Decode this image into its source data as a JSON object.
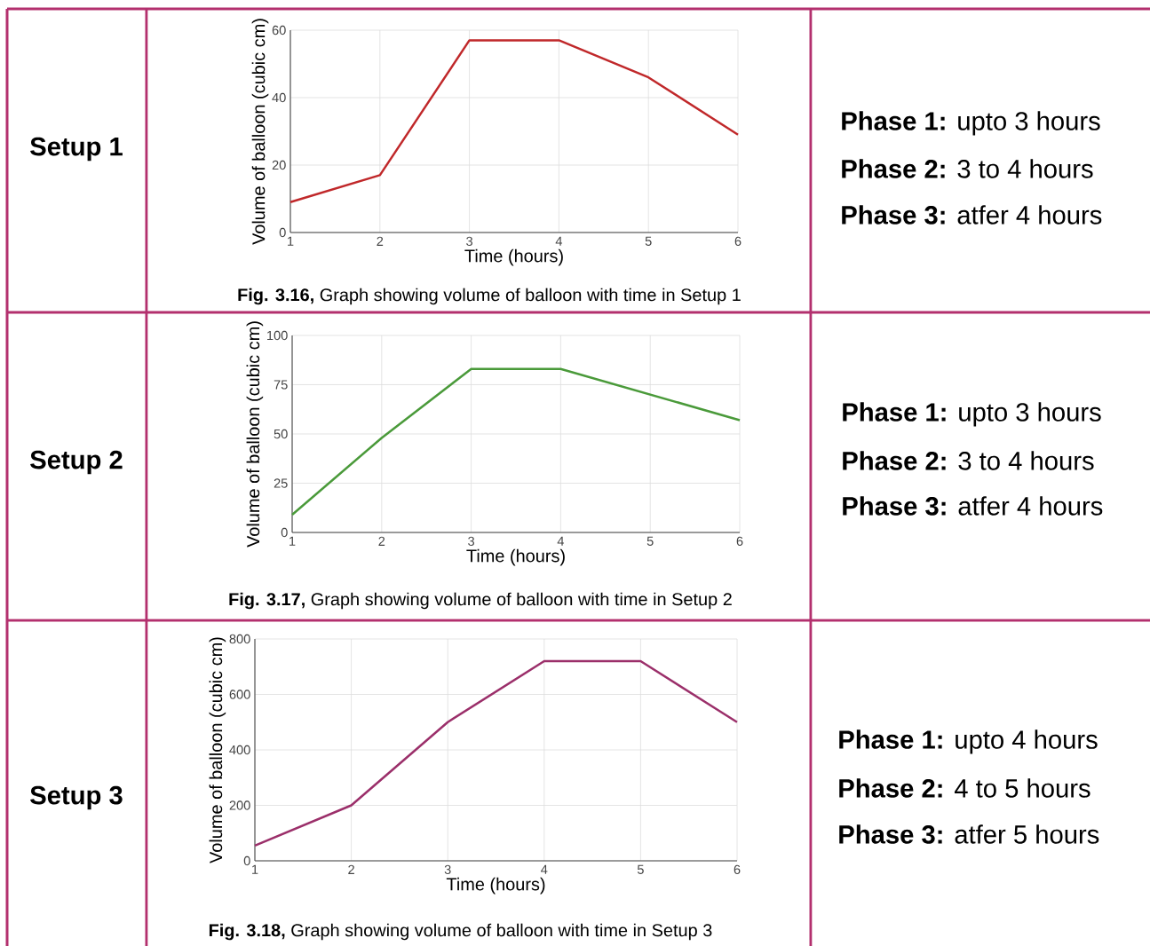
{
  "chart_data": [
    {
      "type": "line",
      "x": [
        1,
        2,
        3,
        4,
        5,
        6
      ],
      "values": [
        9,
        17,
        57,
        57,
        46,
        29
      ],
      "color": "#c0282a",
      "xlabel": "Time (hours)",
      "ylabel": "Volume of balloon (cubic cm)",
      "xlim": [
        1,
        6
      ],
      "xticks": [
        1,
        2,
        3,
        4,
        5,
        6
      ],
      "ylim": [
        0,
        60
      ],
      "yticks": [
        0,
        20,
        40,
        60
      ],
      "grid": true,
      "annotations": [
        "Setup 1",
        "**Phase 1:** upto 3 hours",
        "**Phase 2:** 3 to 4 hours",
        "**Phase 3:** atfer 4 hours",
        "**Fig. 3.16,** Graph showing volume of balloon with time in Setup 1"
      ]
    },
    {
      "type": "line",
      "x": [
        1,
        2,
        3,
        4,
        5,
        6
      ],
      "values": [
        9,
        48,
        83,
        83,
        70,
        57
      ],
      "color": "#4a9a3a",
      "xlabel": "Time (hours)",
      "ylabel": "Volume of balloon (cubic cm)",
      "xlim": [
        1,
        6
      ],
      "xticks": [
        1,
        2,
        3,
        4,
        5,
        6
      ],
      "ylim": [
        0,
        100
      ],
      "yticks": [
        0,
        25,
        50,
        75,
        100
      ],
      "grid": true,
      "annotations": [
        "Setup 2",
        "**Phase 1:** upto 3 hours",
        "**Phase 2:** 3 to 4 hours",
        "**Phase 3:** atfer 4 hours",
        "**Fig. 3.17,** Graph showing volume of balloon with time in Setup 2"
      ]
    },
    {
      "type": "line",
      "x": [
        1,
        2,
        3,
        4,
        5,
        6
      ],
      "values": [
        55,
        200,
        500,
        720,
        720,
        500
      ],
      "color": "#9b2f6a",
      "xlabel": "Time (hours)",
      "ylabel": "Volume of balloon (cubic cm)",
      "xlim": [
        1,
        6
      ],
      "xticks": [
        1,
        2,
        3,
        4,
        5,
        6
      ],
      "ylim": [
        0,
        800
      ],
      "yticks": [
        0,
        200,
        400,
        600,
        800
      ],
      "grid": true,
      "annotations": [
        "Setup 3",
        "**Phase 1:** upto 4 hours",
        "**Phase 2:** 4 to 5 hours",
        "**Phase 3:** atfer 5 hours",
        "**Fig. 3.18,** Graph showing volume of balloon with time in Setup 3"
      ]
    }
  ]
}
